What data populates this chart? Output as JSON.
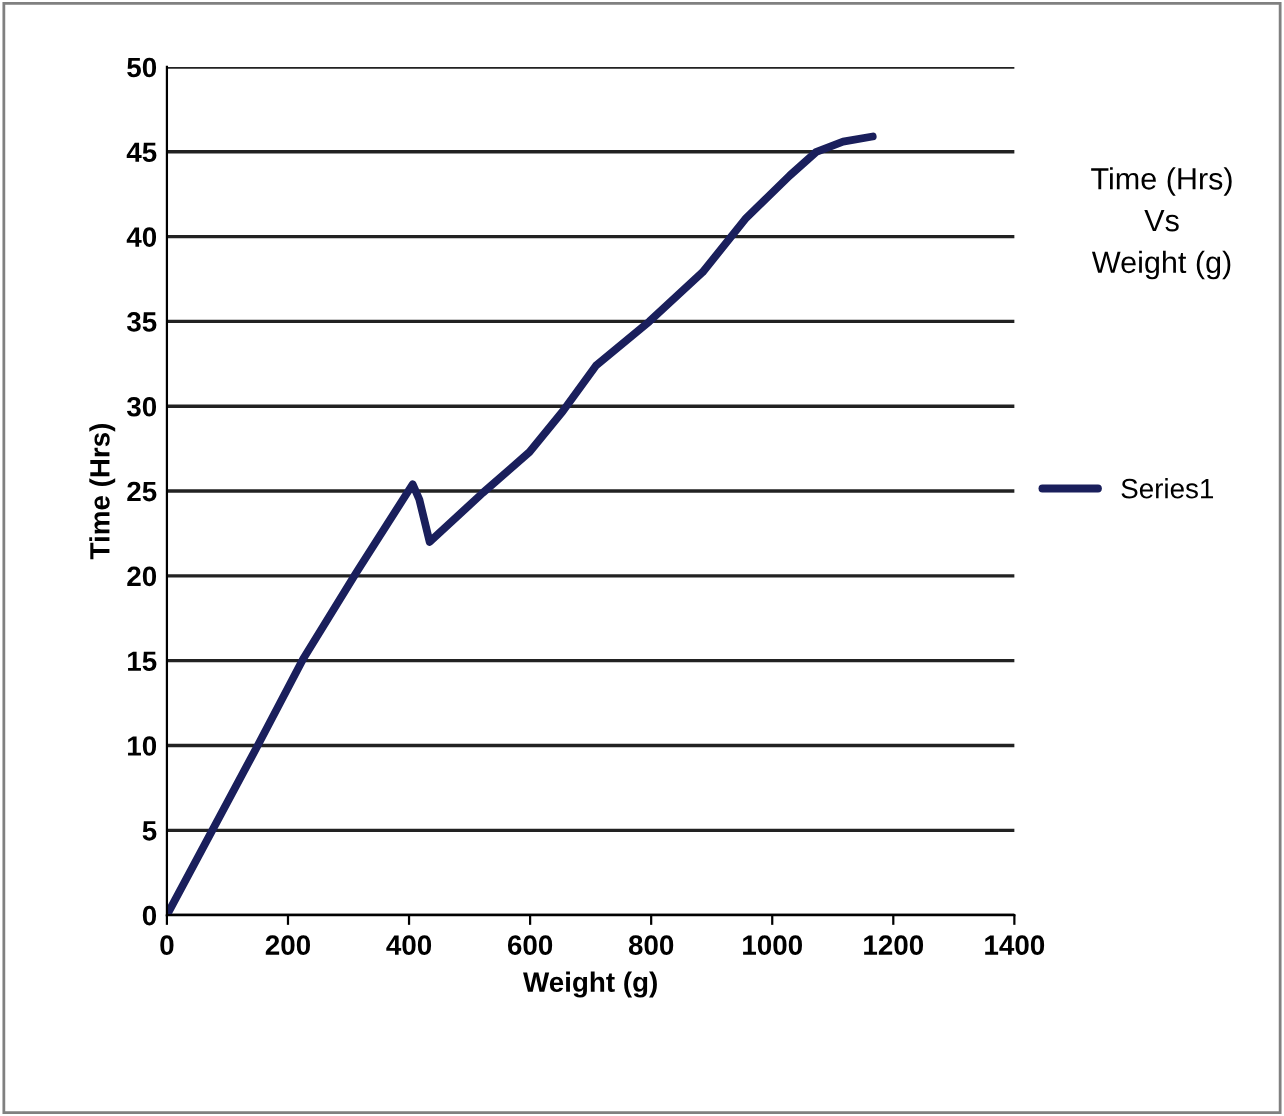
{
  "chart_data": {
    "type": "line",
    "title": "Time (Hrs)\nVs\nWeight (g)",
    "xlabel": "Weight (g)",
    "ylabel": "Time (Hrs)",
    "x": [
      0,
      150,
      225,
      313,
      406,
      417,
      434,
      522,
      599,
      654,
      709,
      797,
      885,
      957,
      1029,
      1073,
      1117,
      1166
    ],
    "series": [
      {
        "name": "Series1",
        "color": "#1a1f5c",
        "values": [
          0,
          10,
          15.1,
          20.2,
          25.4,
          24.5,
          22,
          24.9,
          27.3,
          29.7,
          32.4,
          35,
          37.9,
          41.1,
          43.6,
          45,
          45.6,
          45.9
        ]
      }
    ],
    "xlim": [
      0,
      1400
    ],
    "xticks": [
      0,
      200,
      400,
      600,
      800,
      1000,
      1200,
      1400
    ],
    "ylim": [
      0,
      50
    ],
    "yticks": [
      0,
      5,
      10,
      15,
      20,
      25,
      30,
      35,
      40,
      45,
      50
    ],
    "grid": "y",
    "legend": "right",
    "marker": "none",
    "line_style": "solid"
  }
}
